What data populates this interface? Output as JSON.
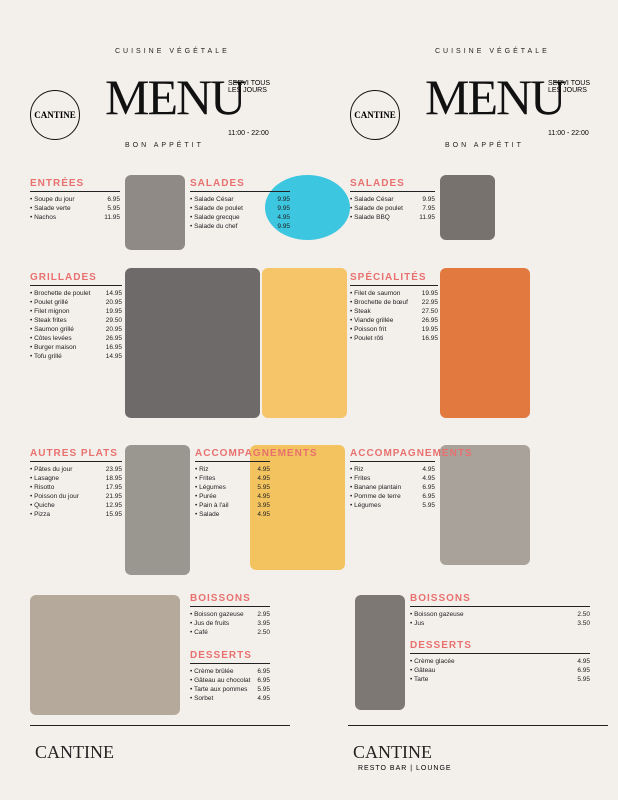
{
  "menus": [
    {
      "tagline": "CUISINE VÉGÉTALE",
      "logo": "CANTINE",
      "title": "MENU",
      "subtitle": "BON APPÉTIT",
      "side": "SERVI TOUS LES JOURS",
      "hours": "11:00 - 22:00"
    },
    {
      "tagline": "CUISINE VÉGÉTALE",
      "logo": "CANTINE",
      "title": "MENU",
      "subtitle": "BON APPÉTIT",
      "side": "SERVI TOUS LES JOURS",
      "hours": "11:00 - 22:00"
    }
  ],
  "sections": [
    {
      "heading": "ENTRÉES",
      "items": [
        {
          "name": "Soupe du jour",
          "price": "6.95"
        },
        {
          "name": "Salade verte",
          "price": "5.95"
        },
        {
          "name": "Nachos",
          "price": "11.95"
        }
      ]
    },
    {
      "heading": "SALADES",
      "items": [
        {
          "name": "Salade César",
          "price": "9.95"
        },
        {
          "name": "Salade de poulet",
          "price": "9.95"
        },
        {
          "name": "Salade grecque",
          "price": "4.95"
        },
        {
          "name": "Salade du chef",
          "price": "9.95"
        }
      ]
    },
    {
      "heading": "GRILLADES",
      "items": [
        {
          "name": "Brochette de poulet",
          "price": "14.95"
        },
        {
          "name": "Poulet grillé",
          "price": "20.95"
        },
        {
          "name": "Filet mignon",
          "price": "19.95"
        },
        {
          "name": "Steak frites",
          "price": "29.50"
        },
        {
          "name": "Saumon grillé",
          "price": "20.95"
        },
        {
          "name": "Côtes levées",
          "price": "26.95"
        },
        {
          "name": "Burger maison",
          "price": "16.95"
        },
        {
          "name": "Tofu grillé",
          "price": "14.95"
        }
      ]
    },
    {
      "heading": "AUTRES PLATS",
      "items": [
        {
          "name": "Pâtes du jour",
          "price": "23.95"
        },
        {
          "name": "Lasagne",
          "price": "18.95"
        },
        {
          "name": "Risotto",
          "price": "17.95"
        },
        {
          "name": "Poisson du jour",
          "price": "21.95"
        },
        {
          "name": "Quiche",
          "price": "12.95"
        },
        {
          "name": "Pizza",
          "price": "15.95"
        }
      ]
    },
    {
      "heading": "ACCOMPAGNEMENTS",
      "items": [
        {
          "name": "Riz",
          "price": "4.95"
        },
        {
          "name": "Frites",
          "price": "4.95"
        },
        {
          "name": "Légumes",
          "price": "5.95"
        },
        {
          "name": "Purée",
          "price": "4.95"
        },
        {
          "name": "Pain à l'ail",
          "price": "3.95"
        },
        {
          "name": "Salade",
          "price": "4.95"
        }
      ]
    },
    {
      "heading": "BOISSONS",
      "items": [
        {
          "name": "Boisson gazeuse",
          "price": "2.95"
        },
        {
          "name": "Jus de fruits",
          "price": "3.95"
        },
        {
          "name": "Café",
          "price": "2.50"
        }
      ]
    },
    {
      "heading": "DESSERTS",
      "items": [
        {
          "name": "Crème brûlée",
          "price": "6.95"
        },
        {
          "name": "Gâteau au chocolat",
          "price": "6.95"
        },
        {
          "name": "Tarte aux pommes",
          "price": "5.95"
        },
        {
          "name": "Sorbet",
          "price": "4.95"
        }
      ]
    },
    {
      "heading": "SALADES",
      "items": [
        {
          "name": "Salade César",
          "price": "9.95"
        },
        {
          "name": "Salade de poulet",
          "price": "7.95"
        },
        {
          "name": "Salade BBQ",
          "price": "11.95"
        }
      ]
    },
    {
      "heading": "SPÉCIALITÉS",
      "items": [
        {
          "name": "Filet de saumon",
          "price": "19.95"
        },
        {
          "name": "Brochette de bœuf",
          "price": "22.95"
        },
        {
          "name": "Steak",
          "price": "27.50"
        },
        {
          "name": "Viande grillée",
          "price": "26.95"
        },
        {
          "name": "Poisson frit",
          "price": "19.95"
        },
        {
          "name": "Poulet rôti",
          "price": "16.95"
        }
      ]
    },
    {
      "heading": "ACCOMPAGNEMENTS",
      "items": [
        {
          "name": "Riz",
          "price": "4.95"
        },
        {
          "name": "Frites",
          "price": "4.95"
        },
        {
          "name": "Banane plantain",
          "price": "6.95"
        },
        {
          "name": "Pomme de terre",
          "price": "6.95"
        },
        {
          "name": "Légumes",
          "price": "5.95"
        }
      ]
    },
    {
      "heading": "BOISSONS",
      "items": [
        {
          "name": "Boisson gazeuse",
          "price": "2.50"
        },
        {
          "name": "Jus",
          "price": "3.50"
        }
      ]
    },
    {
      "heading": "DESSERTS",
      "items": [
        {
          "name": "Crème glacée",
          "price": "4.95"
        },
        {
          "name": "Gâteau",
          "price": "6.95"
        },
        {
          "name": "Tarte",
          "price": "5.95"
        }
      ]
    }
  ],
  "footers": [
    {
      "name": "CANTINE"
    },
    {
      "name": "CANTINE",
      "note": "RESTO BAR | LOUNGE"
    }
  ]
}
